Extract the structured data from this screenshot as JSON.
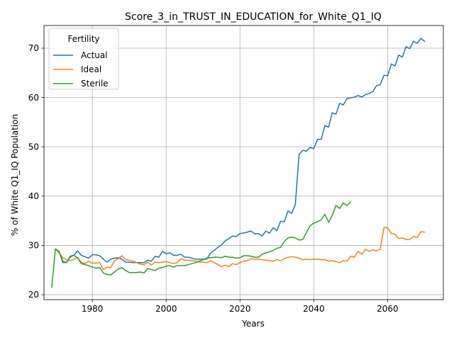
{
  "chart_data": {
    "type": "line",
    "title": "Score_3_in_TRUST_IN_EDUCATION_for_White_Q1_IQ",
    "xlabel": "Years",
    "ylabel": "% of White Q1_IQ Population",
    "xlim": [
      1966.9,
      2075.1
    ],
    "ylim": [
      19.0,
      74.6
    ],
    "xticks": [
      1980,
      2000,
      2020,
      2040,
      2060
    ],
    "yticks": [
      20,
      30,
      40,
      50,
      60,
      70
    ],
    "grid": true,
    "legend": {
      "title": "Fertility",
      "placement": "top-left"
    },
    "series": [
      {
        "name": "Actual",
        "color": "#1f77b4",
        "x": [
          1970,
          1971,
          1972,
          1973,
          1974,
          1975,
          1976,
          1977,
          1978,
          1979,
          1980,
          1981,
          1982,
          1983,
          1984,
          1985,
          1986,
          1987,
          1988,
          1989,
          1990,
          1991,
          1992,
          1993,
          1994,
          1995,
          1996,
          1997,
          1998,
          1999,
          2000,
          2001,
          2002,
          2003,
          2004,
          2005,
          2006,
          2007,
          2008,
          2009,
          2010,
          2011,
          2012,
          2013,
          2014,
          2015,
          2016,
          2017,
          2018,
          2019,
          2020,
          2021,
          2022,
          2023,
          2024,
          2025,
          2026,
          2027,
          2028,
          2029,
          2030,
          2031,
          2032,
          2033,
          2034,
          2035,
          2036,
          2037,
          2038,
          2039,
          2040,
          2041,
          2042,
          2043,
          2044,
          2045,
          2046,
          2047,
          2048,
          2049,
          2050,
          2051,
          2052,
          2053,
          2054,
          2055,
          2056,
          2057,
          2058,
          2059,
          2060,
          2061,
          2062,
          2063,
          2064,
          2065,
          2066,
          2067,
          2068,
          2069,
          2070
        ],
        "y": [
          29.2,
          28.8,
          26.8,
          26.5,
          27.8,
          28.0,
          28.9,
          28.0,
          27.7,
          27.4,
          28.1,
          28.1,
          27.9,
          27.2,
          26.6,
          27.2,
          27.4,
          27.5,
          27.2,
          26.6,
          26.6,
          26.5,
          26.5,
          26.5,
          26.5,
          27.0,
          26.8,
          27.8,
          27.6,
          28.8,
          28.3,
          28.5,
          28.0,
          28.0,
          28.2,
          27.6,
          27.6,
          27.4,
          27.2,
          27.2,
          27.2,
          27.2,
          28.4,
          29.0,
          29.6,
          30.1,
          30.9,
          31.4,
          31.9,
          31.8,
          32.4,
          32.5,
          32.7,
          32.9,
          32.3,
          32.4,
          31.9,
          32.9,
          32.5,
          33.6,
          33.0,
          34.9,
          34.8,
          37.0,
          36.5,
          38.3,
          48.4,
          49.3,
          49.1,
          49.9,
          49.6,
          51.5,
          51.5,
          54.3,
          54.0,
          56.9,
          56.6,
          58.8,
          58.5,
          59.8,
          59.9,
          60.1,
          60.4,
          60.1,
          60.6,
          60.8,
          61.2,
          62.4,
          62.6,
          64.5,
          64.4,
          66.8,
          66.4,
          68.6,
          68.2,
          70.3,
          69.9,
          71.4,
          71.0,
          72.0,
          71.4
        ]
      },
      {
        "name": "Ideal",
        "color": "#ff7f0e",
        "x": [
          1970,
          1971,
          1972,
          1973,
          1974,
          1975,
          1976,
          1977,
          1978,
          1979,
          1980,
          1981,
          1982,
          1983,
          1984,
          1985,
          1986,
          1987,
          1988,
          1989,
          1990,
          1991,
          1992,
          1993,
          1994,
          1995,
          1996,
          1997,
          1998,
          1999,
          2000,
          2001,
          2002,
          2003,
          2004,
          2005,
          2006,
          2007,
          2008,
          2009,
          2010,
          2011,
          2012,
          2013,
          2014,
          2015,
          2016,
          2017,
          2018,
          2019,
          2020,
          2021,
          2022,
          2023,
          2024,
          2025,
          2026,
          2027,
          2028,
          2029,
          2030,
          2031,
          2032,
          2033,
          2034,
          2035,
          2036,
          2037,
          2038,
          2039,
          2040,
          2041,
          2042,
          2043,
          2044,
          2045,
          2046,
          2047,
          2048,
          2049,
          2050,
          2051,
          2052,
          2053,
          2054,
          2055,
          2056,
          2057,
          2058,
          2059,
          2060,
          2061,
          2062,
          2063,
          2064,
          2065,
          2066,
          2067,
          2068,
          2069,
          2070
        ],
        "y": [
          29.2,
          28.5,
          27.5,
          27.1,
          26.9,
          27.2,
          27.5,
          26.6,
          26.3,
          26.8,
          26.4,
          26.4,
          26.5,
          25.1,
          25.6,
          25.5,
          26.9,
          27.3,
          27.9,
          27.1,
          27.0,
          26.8,
          26.5,
          26.2,
          26.1,
          26.6,
          26.0,
          26.6,
          26.5,
          26.6,
          26.7,
          26.5,
          26.3,
          26.5,
          27.3,
          27.0,
          27.0,
          26.9,
          26.8,
          26.6,
          26.6,
          26.5,
          26.9,
          26.5,
          26.1,
          25.7,
          26.0,
          25.7,
          26.3,
          26.1,
          26.5,
          26.8,
          26.9,
          27.3,
          27.2,
          27.2,
          27.1,
          27.0,
          26.9,
          26.8,
          27.1,
          26.9,
          27.3,
          27.6,
          27.7,
          27.6,
          27.4,
          27.1,
          27.2,
          27.1,
          27.2,
          27.2,
          27.1,
          27.1,
          26.8,
          26.9,
          26.7,
          26.5,
          26.9,
          26.8,
          27.8,
          27.6,
          28.8,
          28.2,
          29.2,
          28.8,
          29.1,
          28.9,
          29.2,
          33.6,
          33.6,
          32.4,
          32.3,
          31.4,
          31.5,
          31.2,
          31.2,
          31.8,
          31.6,
          32.8,
          32.7
        ]
      },
      {
        "name": "Sterile",
        "color": "#2ca02c",
        "x": [
          1969,
          1970,
          1971,
          1972,
          1973,
          1974,
          1975,
          1976,
          1977,
          1978,
          1979,
          1980,
          1981,
          1982,
          1983,
          1984,
          1985,
          1986,
          1987,
          1988,
          1989,
          1990,
          1991,
          1992,
          1993,
          1994,
          1995,
          1996,
          1997,
          1998,
          1999,
          2000,
          2001,
          2002,
          2003,
          2004,
          2005,
          2006,
          2007,
          2008,
          2009,
          2010,
          2011,
          2012,
          2013,
          2014,
          2015,
          2016,
          2017,
          2018,
          2019,
          2020,
          2021,
          2022,
          2023,
          2024,
          2025,
          2026,
          2027,
          2028,
          2029,
          2030,
          2031,
          2032,
          2033,
          2034,
          2035,
          2036,
          2037,
          2038,
          2039,
          2040,
          2041,
          2042,
          2043,
          2044,
          2045,
          2046,
          2047,
          2048,
          2049,
          2050
        ],
        "y": [
          21.5,
          29.3,
          28.7,
          26.5,
          26.5,
          27.6,
          28.0,
          27.5,
          26.3,
          26.1,
          25.9,
          25.6,
          25.4,
          25.5,
          24.4,
          24.1,
          24.0,
          24.6,
          25.2,
          25.5,
          24.9,
          24.5,
          24.5,
          24.5,
          24.6,
          24.4,
          25.3,
          25.1,
          24.9,
          25.4,
          25.5,
          25.8,
          25.9,
          25.6,
          25.9,
          25.9,
          25.9,
          26.1,
          26.3,
          26.5,
          26.8,
          27.1,
          27.4,
          27.5,
          27.6,
          27.6,
          27.5,
          27.8,
          27.6,
          27.6,
          27.4,
          27.5,
          27.9,
          27.9,
          27.8,
          27.6,
          27.6,
          28.2,
          28.5,
          28.7,
          29.0,
          29.4,
          29.6,
          30.8,
          31.5,
          31.7,
          31.5,
          31.1,
          31.2,
          32.6,
          34.0,
          34.5,
          34.8,
          35.2,
          36.3,
          34.7,
          36.1,
          38.1,
          37.5,
          38.6,
          38.1,
          38.8
        ]
      }
    ]
  }
}
